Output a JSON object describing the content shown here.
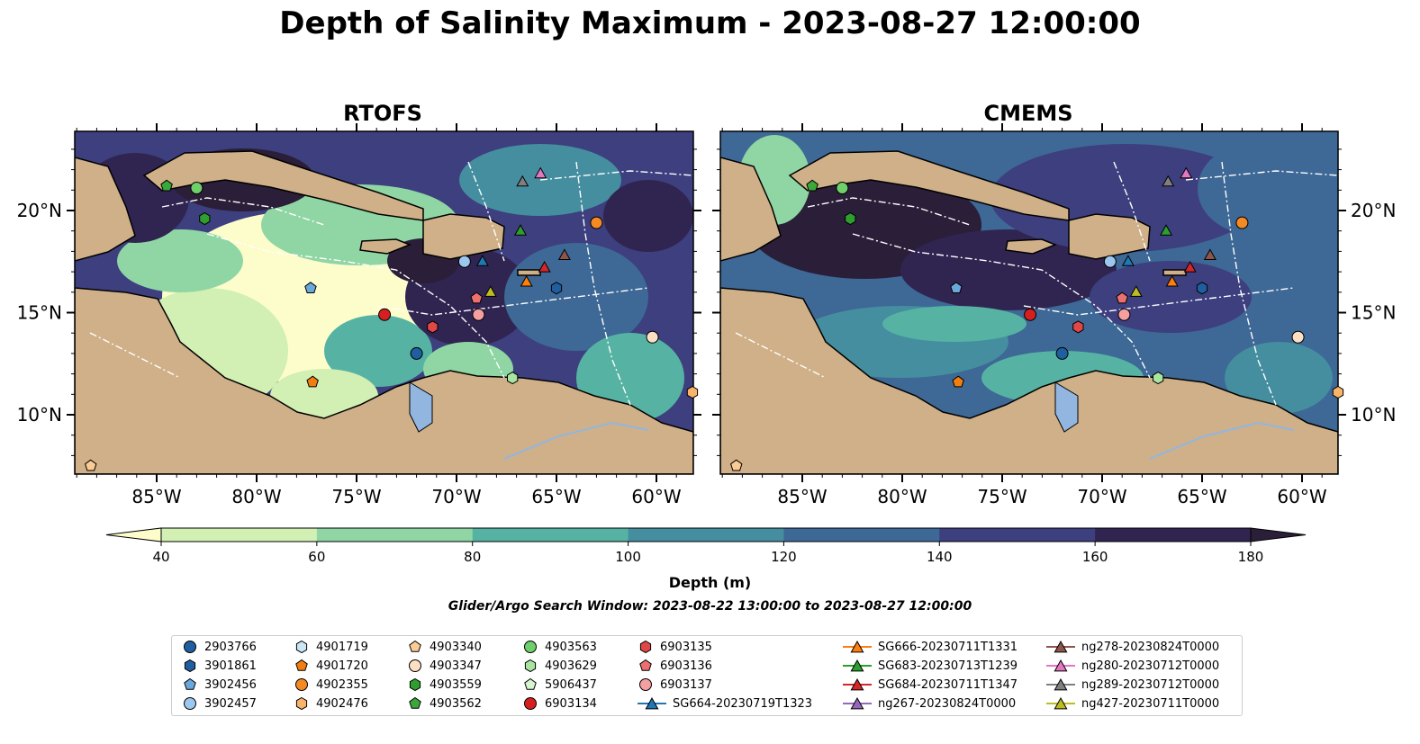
{
  "title": "Depth of Salinity Maximum - 2023-08-27 12:00:00",
  "panels": [
    {
      "title": "RTOFS"
    },
    {
      "title": "CMEMS"
    }
  ],
  "lat_labels": [
    "20°N",
    "15°N",
    "10°N"
  ],
  "lon_labels": [
    "85°W",
    "80°W",
    "75°W",
    "70°W",
    "65°W",
    "60°W"
  ],
  "colorbar": {
    "label": "Depth (m)",
    "ticks": [
      "40",
      "60",
      "80",
      "100",
      "120",
      "140",
      "160",
      "180"
    ],
    "colors": [
      "#fdfdcc",
      "#d2efb4",
      "#8fd6a4",
      "#56b3a3",
      "#458ea0",
      "#3e6895",
      "#3d3f7e",
      "#302551",
      "#2a1e38"
    ]
  },
  "search_window": "Glider/Argo Search Window: 2023-08-22 13:00:00 to 2023-08-27 12:00:00",
  "colors": {
    "land": "#cfb088",
    "water_feature": "#92b6e0",
    "boundary": "#ffffff"
  },
  "legend": [
    {
      "label": "2903766",
      "marker": "circle",
      "color": "#1f5fa0"
    },
    {
      "label": "3901861",
      "marker": "hexagon",
      "color": "#1f5fa0"
    },
    {
      "label": "3902456",
      "marker": "pentagon",
      "color": "#6aa8dc"
    },
    {
      "label": "3902457",
      "marker": "circle",
      "color": "#9cc8f0"
    },
    {
      "label": "4901719",
      "marker": "hexagon",
      "color": "#cbe6f7"
    },
    {
      "label": "4901720",
      "marker": "pentagon",
      "color": "#f07f12"
    },
    {
      "label": "4902355",
      "marker": "circle",
      "color": "#f58a25"
    },
    {
      "label": "4902476",
      "marker": "hexagon",
      "color": "#f9b46a"
    },
    {
      "label": "4903340",
      "marker": "pentagon",
      "color": "#fbcb95"
    },
    {
      "label": "4903347",
      "marker": "circle",
      "color": "#fde0c4"
    },
    {
      "label": "4903559",
      "marker": "hexagon",
      "color": "#2e9e2e"
    },
    {
      "label": "4903562",
      "marker": "pentagon",
      "color": "#3aa83a"
    },
    {
      "label": "4903563",
      "marker": "circle",
      "color": "#6fcf6a"
    },
    {
      "label": "4903629",
      "marker": "hexagon",
      "color": "#a9e4a0"
    },
    {
      "label": "5906437",
      "marker": "pentagon",
      "color": "#d5f5cf"
    },
    {
      "label": "6903134",
      "marker": "circle",
      "color": "#d62020"
    },
    {
      "label": "6903135",
      "marker": "hexagon",
      "color": "#e04848"
    },
    {
      "label": "6903136",
      "marker": "pentagon",
      "color": "#ec7070"
    },
    {
      "label": "6903137",
      "marker": "circle",
      "color": "#f5a0a0"
    },
    {
      "label": "SG664-20230719T1323",
      "marker": "triangle-line",
      "color": "#1f77b4"
    },
    {
      "label": "SG666-20230711T1331",
      "marker": "triangle-line",
      "color": "#ff7f0e"
    },
    {
      "label": "SG683-20230713T1239",
      "marker": "triangle-line",
      "color": "#2ca02c"
    },
    {
      "label": "SG684-20230711T1347",
      "marker": "triangle-line",
      "color": "#d62728"
    },
    {
      "label": "ng267-20230824T0000",
      "marker": "triangle-line",
      "color": "#9467bd"
    },
    {
      "label": "ng278-20230824T0000",
      "marker": "triangle-line",
      "color": "#8c564b"
    },
    {
      "label": "ng280-20230712T0000",
      "marker": "triangle-line",
      "color": "#e377c2"
    },
    {
      "label": "ng289-20230712T0000",
      "marker": "triangle-line",
      "color": "#7f7f7f"
    },
    {
      "label": "ng427-20230711T0000",
      "marker": "triangle-line",
      "color": "#bcbd22"
    }
  ],
  "observations": [
    {
      "id": "2903766",
      "lon": -72.0,
      "lat": 13.0
    },
    {
      "id": "3901861",
      "lon": -65.0,
      "lat": 16.2
    },
    {
      "id": "3902456",
      "lon": -77.3,
      "lat": 16.2
    },
    {
      "id": "3902457",
      "lon": -69.6,
      "lat": 17.5
    },
    {
      "id": "4901720",
      "lon": -77.2,
      "lat": 11.6
    },
    {
      "id": "4902355",
      "lon": -63.0,
      "lat": 19.4
    },
    {
      "id": "4903347",
      "lon": -60.2,
      "lat": 13.8
    },
    {
      "id": "4902476",
      "lon": -58.2,
      "lat": 11.1
    },
    {
      "id": "4903340",
      "lon": -88.3,
      "lat": 7.5
    },
    {
      "id": "4903559",
      "lon": -82.6,
      "lat": 19.6
    },
    {
      "id": "4903562",
      "lon": -84.5,
      "lat": 21.2
    },
    {
      "id": "4903563",
      "lon": -83.0,
      "lat": 21.1
    },
    {
      "id": "4903629",
      "lon": -67.2,
      "lat": 11.8
    },
    {
      "id": "6903134",
      "lon": -73.6,
      "lat": 14.9
    },
    {
      "id": "6903135",
      "lon": -71.2,
      "lat": 14.3
    },
    {
      "id": "6903136",
      "lon": -69.0,
      "lat": 15.7
    },
    {
      "id": "6903137",
      "lon": -68.9,
      "lat": 14.9
    },
    {
      "id": "SG664-20230719T1323",
      "lon": -68.7,
      "lat": 17.5
    },
    {
      "id": "SG666-20230711T1331",
      "lon": -66.5,
      "lat": 16.5
    },
    {
      "id": "SG683-20230713T1239",
      "lon": -66.8,
      "lat": 19.0
    },
    {
      "id": "SG684-20230711T1347",
      "lon": -65.6,
      "lat": 17.2
    },
    {
      "id": "ng278-20230824T0000",
      "lon": -64.6,
      "lat": 17.8
    },
    {
      "id": "ng280-20230712T0000",
      "lon": -65.8,
      "lat": 21.8
    },
    {
      "id": "ng289-20230712T0000",
      "lon": -66.7,
      "lat": 21.4
    },
    {
      "id": "ng427-20230711T0000",
      "lon": -68.3,
      "lat": 16.0
    }
  ]
}
